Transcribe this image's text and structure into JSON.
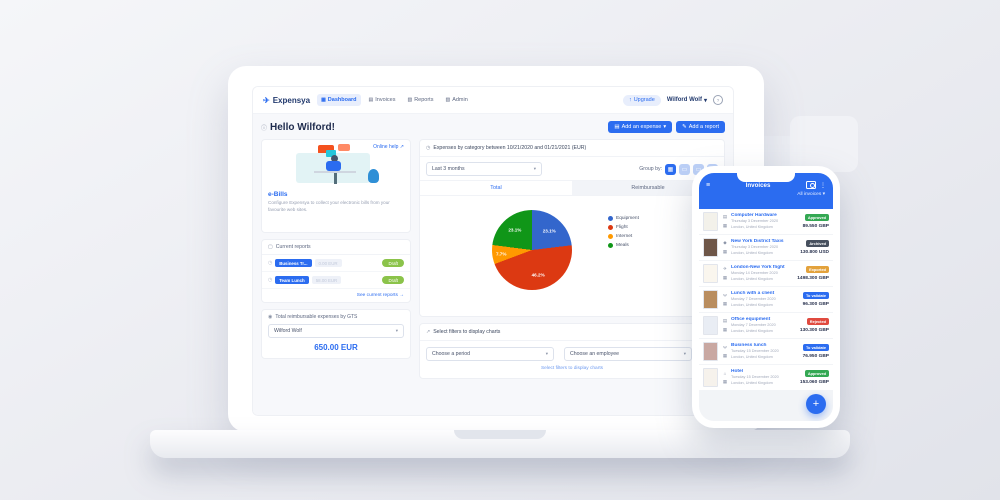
{
  "laptop": {
    "nav": {
      "brand": "Expensya",
      "items": [
        {
          "label": "Dashboard",
          "icon": "dashboard-icon",
          "active": true
        },
        {
          "label": "Invoices",
          "icon": "invoices-icon",
          "active": false
        },
        {
          "label": "Reports",
          "icon": "reports-icon",
          "active": false
        },
        {
          "label": "Admin",
          "icon": "admin-icon",
          "active": false
        }
      ],
      "upgrade_label": "Upgrade",
      "user_name": "Wilford Wolf"
    },
    "hero": {
      "greeting": "Hello Wilford!",
      "add_expense_label": "Add an expense",
      "add_report_label": "Add a report"
    },
    "ebills_card": {
      "online_help_label": "Online help",
      "title": "e-Bills",
      "description": "Configure Expensya to collect your electronic bills from your favourite web sites."
    },
    "current_reports_card": {
      "title": "Current reports",
      "reports": [
        {
          "name": "Business Tr...",
          "amount": "0.00 EUR",
          "status": "Draft"
        },
        {
          "name": "Team Lunch",
          "amount": "58.00 EUR",
          "status": "Draft"
        }
      ],
      "see_all_label": "See current reports →"
    },
    "reimbursable_card": {
      "title": "Total reimbursable expenses by GTS",
      "selected_user": "Wilford Wolf",
      "total": "650.00 EUR"
    },
    "chart_card": {
      "title": "Expenses by category between 10/21/2020 and 01/21/2021 (EUR)",
      "period_select": "Last 3 months",
      "group_by_label": "Group by:",
      "group_by_icons": [
        "grid",
        "card",
        "cardwide",
        "circle"
      ],
      "tabs": [
        "Total",
        "Reimbursable"
      ],
      "active_tab": "Total"
    },
    "filters_card": {
      "title": "Select filters to display charts",
      "period_placeholder": "Choose a period",
      "employee_placeholder": "Choose an employee",
      "hint": "Select filters to display charts"
    }
  },
  "chart_data": {
    "type": "pie",
    "title": "Expenses by category between 10/21/2020 and 01/21/2021 (EUR)",
    "categories": [
      "Equipment",
      "Flight",
      "Internet",
      "Meals"
    ],
    "values": [
      23.1,
      46.2,
      7.7,
      23.1
    ],
    "unit": "%",
    "colors": [
      "#3366cc",
      "#dc3912",
      "#ff9900",
      "#109618"
    ],
    "legend_position": "right"
  },
  "phone": {
    "header": {
      "title": "Invoices",
      "filter_label": "All invoices"
    },
    "invoices": [
      {
        "title": "Computer Hardware",
        "date": "Thursday 3 December 2020",
        "location": "London, United Kingdom",
        "amount": "89.550 GBP",
        "status": "Approved",
        "icon": "monitor",
        "thumb": "#f3f1ea"
      },
      {
        "title": "New York District Taxis",
        "date": "Thursday 3 December 2020",
        "location": "London, United Kingdom",
        "amount": "130.800 USD",
        "status": "Archived",
        "icon": "taxi",
        "thumb": "#6e5648"
      },
      {
        "title": "London-New York flight",
        "date": "Monday 14 December 2020",
        "location": "London, United Kingdom",
        "amount": "1498.300 GBP",
        "status": "Exported",
        "icon": "plane",
        "thumb": "#faf6ee"
      },
      {
        "title": "Lunch with a client",
        "date": "Monday 7 December 2020",
        "location": "London, United Kingdom",
        "amount": "96.300 GBP",
        "status": "To validate",
        "icon": "meal",
        "thumb": "#b98d5f"
      },
      {
        "title": "Office equipment",
        "date": "Monday 7 December 2020",
        "location": "London, United Kingdom",
        "amount": "130.300 GBP",
        "status": "Rejected",
        "icon": "monitor",
        "thumb": "#e9edf4"
      },
      {
        "title": "Business lunch",
        "date": "Tuesday 15 December 2020",
        "location": "London, United Kingdom",
        "amount": "76.950 GBP",
        "status": "To validate",
        "icon": "meal",
        "thumb": "#c9a8a2"
      },
      {
        "title": "Hotel",
        "date": "Tuesday 15 December 2020",
        "location": "London, United Kingdom",
        "amount": "153.060 GBP",
        "status": "Approved",
        "icon": "hotel",
        "thumb": "#f6f2ec"
      }
    ],
    "fab_label": "+"
  },
  "status_colors": {
    "Approved": "#34a853",
    "Archived": "#47505e",
    "Exported": "#e3a23c",
    "To validate": "#2b6cf0",
    "Rejected": "#e04a3f"
  },
  "accent_color": "#2b6cf0"
}
